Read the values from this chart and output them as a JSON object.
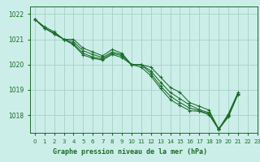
{
  "background_color": "#cceee8",
  "grid_color": "#aad4cc",
  "line_color": "#1a6b2a",
  "text_color": "#1a6b2a",
  "xlabel": "Graphe pression niveau de la mer (hPa)",
  "xlim": [
    -0.5,
    23
  ],
  "ylim": [
    1017.3,
    1022.3
  ],
  "yticks": [
    1018,
    1019,
    1020,
    1021,
    1022
  ],
  "xticks": [
    0,
    1,
    2,
    3,
    4,
    5,
    6,
    7,
    8,
    9,
    10,
    11,
    12,
    13,
    14,
    15,
    16,
    17,
    18,
    19,
    20,
    21,
    22,
    23
  ],
  "series": [
    [
      1021.8,
      1021.5,
      1021.3,
      1021.0,
      1021.0,
      1020.65,
      1020.5,
      1020.35,
      1020.6,
      1020.45,
      1020.0,
      1020.0,
      1019.9,
      1019.5,
      1019.1,
      1018.9,
      1018.5,
      1018.35,
      1018.2,
      1017.45,
      1018.05,
      1018.9,
      null,
      null
    ],
    [
      1021.8,
      1021.45,
      1021.25,
      1021.0,
      1020.9,
      1020.55,
      1020.4,
      1020.28,
      1020.5,
      1020.4,
      1020.0,
      1020.0,
      1019.75,
      1019.3,
      1018.9,
      1018.65,
      1018.4,
      1018.22,
      1018.1,
      1017.45,
      1018.0,
      1018.85,
      null,
      null
    ],
    [
      1021.8,
      1021.45,
      1021.22,
      1021.0,
      1020.82,
      1020.45,
      1020.3,
      1020.22,
      1020.45,
      1020.35,
      1020.0,
      1020.0,
      1019.65,
      1019.15,
      1018.75,
      1018.5,
      1018.28,
      1018.18,
      1018.05,
      1017.46,
      1017.96,
      1018.85,
      null,
      null
    ],
    [
      1021.8,
      1021.45,
      1021.22,
      1021.0,
      1020.78,
      1020.38,
      1020.25,
      1020.18,
      1020.4,
      1020.28,
      1020.0,
      1019.9,
      1019.55,
      1019.05,
      1018.62,
      1018.38,
      1018.18,
      1018.15,
      1018.02,
      1017.43,
      1017.93,
      1018.82,
      null,
      null
    ]
  ]
}
